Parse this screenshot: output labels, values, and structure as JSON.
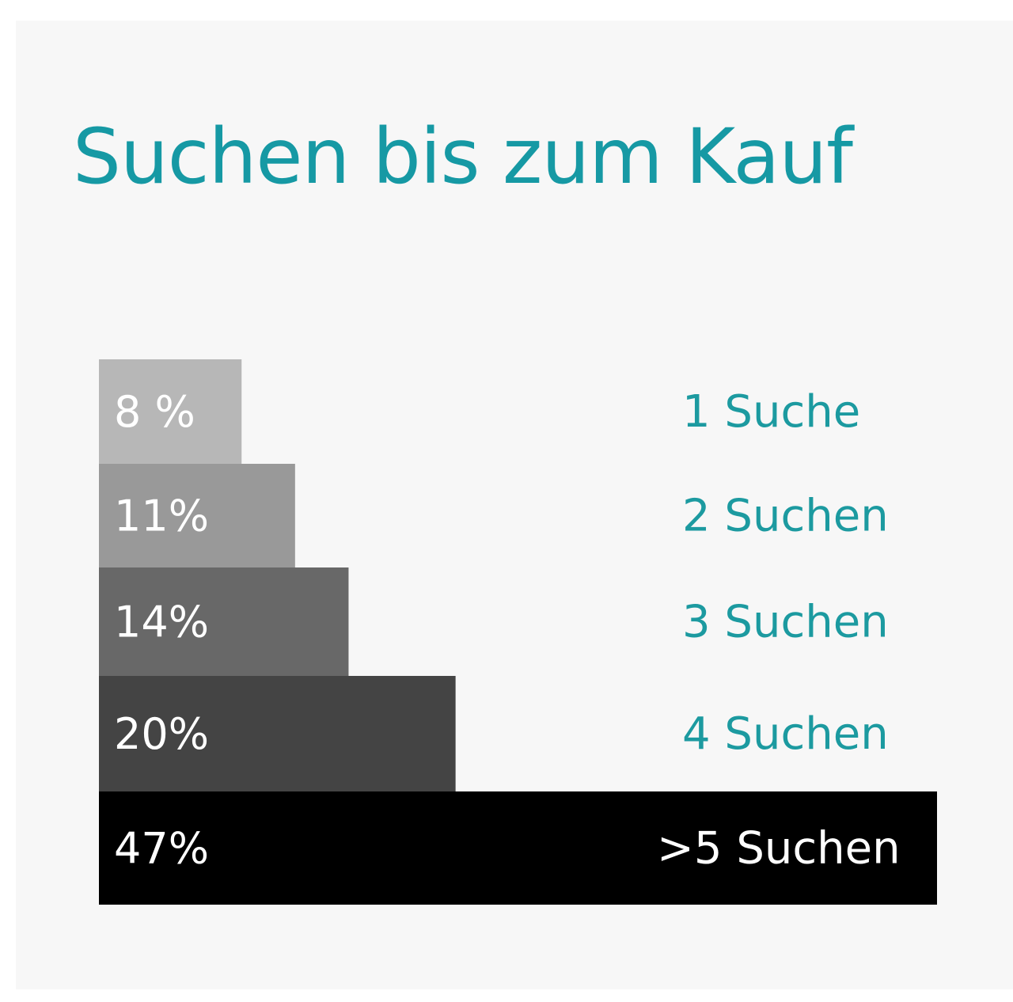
{
  "chart_data": {
    "type": "bar",
    "orientation": "horizontal",
    "title": "Suchen bis zum Kauf",
    "categories": [
      "1 Suche",
      "2 Suchen",
      "3 Suchen",
      "4 Suchen",
      ">5 Suchen"
    ],
    "values": [
      8,
      11,
      14,
      20,
      47
    ],
    "value_labels": [
      "8 %",
      "11%",
      "14%",
      "20%",
      "47%"
    ],
    "unit": "%",
    "xlim": [
      0,
      47
    ],
    "grid": false,
    "legend": "none",
    "colors": [
      "#b7b7b7",
      "#999999",
      "#686868",
      "#444444",
      "#000000"
    ],
    "title_color": "#1699a4",
    "label_color": "#1c9aa0",
    "value_label_color": "#ffffff",
    "background_color": "#f7f7f7"
  }
}
